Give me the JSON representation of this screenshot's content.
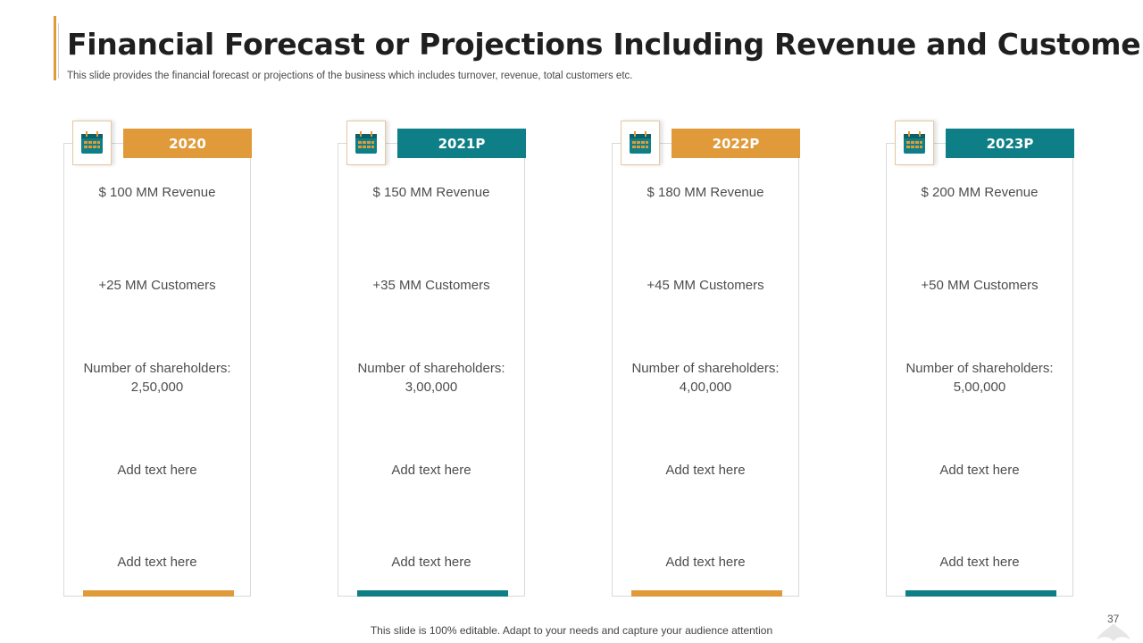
{
  "colors": {
    "orange": "#E09A3A",
    "teal": "#0E7F86"
  },
  "slide": {
    "title": "Financial Forecast or Projections Including Revenue and Customers",
    "subtitle": "This slide provides the financial forecast or projections of the business which includes turnover, revenue,  total customers etc."
  },
  "cards": [
    {
      "year": "2020",
      "color": "orange",
      "icon": "calendar-icon",
      "revenue": "$ 100 MM Revenue",
      "customers": "+25 MM Customers",
      "shareholders_label": "Number of shareholders:",
      "shareholders_value": "2,50,000",
      "text1": "Add text here",
      "text2": "Add text here"
    },
    {
      "year": "2021P",
      "color": "teal",
      "icon": "calendar-icon",
      "revenue": "$ 150 MM Revenue",
      "customers": "+35 MM Customers",
      "shareholders_label": "Number of shareholders:",
      "shareholders_value": "3,00,000",
      "text1": "Add text here",
      "text2": "Add text here"
    },
    {
      "year": "2022P",
      "color": "orange",
      "icon": "calendar-icon",
      "revenue": "$ 180 MM Revenue",
      "customers": "+45 MM Customers",
      "shareholders_label": "Number of shareholders:",
      "shareholders_value": "4,00,000",
      "text1": "Add text here",
      "text2": "Add text here"
    },
    {
      "year": "2023P",
      "color": "teal",
      "icon": "calendar-icon",
      "revenue": "$ 200 MM Revenue",
      "customers": "+50 MM Customers",
      "shareholders_label": "Number of shareholders:",
      "shareholders_value": "5,00,000",
      "text1": "Add text here",
      "text2": "Add text here"
    }
  ],
  "footer": {
    "text": "This slide is 100% editable. Adapt to your needs and capture your audience attention",
    "page_number": "37"
  }
}
